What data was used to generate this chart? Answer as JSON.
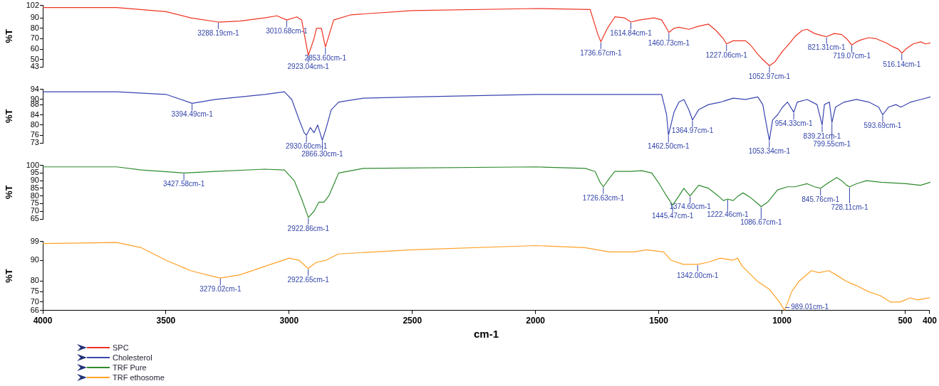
{
  "chart_data": [
    {
      "type": "line",
      "ylabel": "%T",
      "xlim": [
        4000,
        400
      ],
      "ylim": [
        43,
        102
      ],
      "yticks": [
        43,
        50,
        60,
        70,
        80,
        90,
        102
      ],
      "tick_labels": "y",
      "legend": "bottom",
      "x": [
        4000,
        3700,
        3500,
        3400,
        3288.19,
        3200,
        3100,
        3050,
        3010.68,
        2970,
        2950,
        2923.04,
        2900,
        2890,
        2870,
        2853.6,
        2820,
        2750,
        2500,
        2000,
        1780,
        1750,
        1736.67,
        1710,
        1680,
        1640,
        1614.84,
        1580,
        1520,
        1490,
        1470,
        1460.73,
        1440,
        1420,
        1380,
        1340,
        1300,
        1270,
        1240,
        1227.06,
        1200,
        1150,
        1130,
        1100,
        1080,
        1052.97,
        1030,
        1000,
        970,
        950,
        920,
        900,
        870,
        840,
        821.31,
        790,
        760,
        740,
        719.07,
        700,
        680,
        650,
        620,
        580,
        550,
        530,
        516.14,
        500,
        470,
        440,
        420,
        400
      ],
      "series": [
        {
          "name": "SPC",
          "color": "#ee3322",
          "values": [
            100,
            100,
            96,
            90,
            86,
            87,
            90,
            92,
            88,
            91,
            88,
            54,
            70,
            80,
            80,
            62,
            88,
            93,
            97,
            99,
            98,
            75,
            67,
            80,
            91,
            90,
            86,
            88,
            90,
            88,
            80,
            76,
            80,
            81,
            79,
            82,
            84,
            78,
            70,
            65,
            68,
            68,
            64,
            55,
            50,
            44,
            48,
            58,
            66,
            72,
            78,
            79,
            75,
            73,
            72,
            75,
            74,
            70,
            64,
            67,
            69,
            71,
            70,
            66,
            62,
            60,
            56,
            60,
            65,
            67,
            65,
            66
          ]
        }
      ],
      "annotations": [
        {
          "text": "3288.19cm-1",
          "x": 3288.19,
          "y": 86
        },
        {
          "text": "3010.68cm-1",
          "x": 3010.68,
          "y": 88
        },
        {
          "text": "2923.04cm-1",
          "x": 2923.04,
          "y": 54
        },
        {
          "text": "2853.60cm-1",
          "x": 2853.6,
          "y": 62
        },
        {
          "text": "1736.67cm-1",
          "x": 1736.67,
          "y": 67
        },
        {
          "text": "1614.84cm-1",
          "x": 1614.84,
          "y": 86
        },
        {
          "text": "1460.73cm-1",
          "x": 1460.73,
          "y": 76
        },
        {
          "text": "1227.06cm-1",
          "x": 1227.06,
          "y": 65
        },
        {
          "text": "1052.97cm-1",
          "x": 1052.97,
          "y": 44
        },
        {
          "text": "821.31cm-1",
          "x": 821.31,
          "y": 72
        },
        {
          "text": "719.07cm-1",
          "x": 719.07,
          "y": 64
        },
        {
          "text": "516.14cm-1",
          "x": 516.14,
          "y": 56
        }
      ]
    },
    {
      "type": "line",
      "ylabel": "%T",
      "xlim": [
        4000,
        400
      ],
      "ylim": [
        73,
        94
      ],
      "yticks": [
        73,
        76,
        80,
        84,
        88,
        90,
        94
      ],
      "tick_labels": "y",
      "legend": "bottom",
      "x": [
        4000,
        3700,
        3500,
        3394.49,
        3300,
        3100,
        3020,
        2990,
        2960,
        2940,
        2930.6,
        2915,
        2900,
        2885,
        2866.3,
        2850,
        2830,
        2800,
        2700,
        2500,
        2000,
        1600,
        1490,
        1470,
        1462.5,
        1440,
        1420,
        1400,
        1380,
        1364.97,
        1340,
        1300,
        1250,
        1200,
        1150,
        1100,
        1080,
        1065,
        1053.34,
        1040,
        1020,
        1000,
        980,
        954.33,
        940,
        900,
        860,
        839.21,
        830,
        810,
        799.55,
        785,
        750,
        700,
        650,
        610,
        593.69,
        570,
        540,
        520,
        480,
        440,
        400
      ],
      "series": [
        {
          "name": "Cholesterol",
          "color": "#3a44b0",
          "values": [
            93,
            93,
            92,
            88.5,
            90,
            92,
            93,
            90,
            82,
            77,
            76,
            79,
            77,
            80,
            74,
            79,
            86,
            89,
            90.5,
            91,
            92,
            92,
            92,
            84,
            76,
            85,
            89,
            90,
            86,
            82,
            86,
            88,
            89,
            90.5,
            90,
            91,
            88,
            80,
            74,
            82,
            84,
            87,
            89,
            85,
            89,
            90,
            88,
            80,
            88,
            89,
            81,
            87,
            89,
            90,
            89,
            87,
            84,
            87,
            88,
            87,
            89,
            90,
            91
          ]
        }
      ],
      "annotations": [
        {
          "text": "3394.49cm-1",
          "x": 3394.49,
          "y": 88.5
        },
        {
          "text": "2930.60cm-1",
          "x": 2930.6,
          "y": 76
        },
        {
          "text": "2866.30cm-1",
          "x": 2866.3,
          "y": 74
        },
        {
          "text": "1462.50cm-1",
          "x": 1462.5,
          "y": 76
        },
        {
          "text": "1364.97cm-1",
          "x": 1364.97,
          "y": 82
        },
        {
          "text": "1053.34cm-1",
          "x": 1053.34,
          "y": 74
        },
        {
          "text": "954.33cm-1",
          "x": 954.33,
          "y": 85
        },
        {
          "text": "839.21cm-1",
          "x": 839.21,
          "y": 80
        },
        {
          "text": "799.55cm-1",
          "x": 799.55,
          "y": 81
        },
        {
          "text": "593.69cm-1",
          "x": 593.69,
          "y": 84
        }
      ]
    },
    {
      "type": "line",
      "ylabel": "%T",
      "xlim": [
        4000,
        400
      ],
      "ylim": [
        65,
        100
      ],
      "yticks": [
        65,
        70,
        75,
        80,
        85,
        90,
        95,
        100
      ],
      "tick_labels": "y",
      "legend": "bottom",
      "x": [
        4000,
        3700,
        3600,
        3427.58,
        3300,
        3100,
        3020,
        2980,
        2950,
        2922.86,
        2900,
        2880,
        2860,
        2840,
        2800,
        2700,
        2000,
        1800,
        1760,
        1740,
        1726.63,
        1700,
        1680,
        1620,
        1570,
        1530,
        1500,
        1470,
        1445.47,
        1420,
        1400,
        1385,
        1374.6,
        1340,
        1300,
        1260,
        1240,
        1222.46,
        1200,
        1180,
        1160,
        1130,
        1100,
        1086.67,
        1060,
        1020,
        980,
        950,
        900,
        870,
        845.76,
        820,
        780,
        760,
        740,
        728.11,
        700,
        660,
        600,
        500,
        440,
        400
      ],
      "series": [
        {
          "name": "TRF Pure",
          "color": "#2e8b2e",
          "values": [
            99,
            99,
            97,
            95,
            96,
            97.5,
            97,
            90,
            78,
            66,
            70,
            76,
            76,
            80,
            95,
            98,
            99,
            98,
            96,
            89,
            86,
            92,
            96,
            96,
            96.5,
            95,
            88,
            80,
            74,
            80,
            85,
            82,
            80,
            87,
            85,
            80,
            77,
            78,
            77,
            80,
            82,
            79,
            75,
            73,
            76,
            84,
            86,
            86,
            88,
            86,
            85,
            88,
            92,
            90,
            87,
            86,
            88,
            90,
            89,
            88,
            87,
            89
          ]
        }
      ],
      "annotations": [
        {
          "text": "3427.58cm-1",
          "x": 3427.58,
          "y": 95
        },
        {
          "text": "2922.86cm-1",
          "x": 2922.86,
          "y": 66
        },
        {
          "text": "1726.63cm-1",
          "x": 1726.63,
          "y": 86
        },
        {
          "text": "1445.47cm-1",
          "x": 1445.47,
          "y": 74
        },
        {
          "text": "1374.60cm-1",
          "x": 1374.6,
          "y": 80
        },
        {
          "text": "1222.46cm-1",
          "x": 1222.46,
          "y": 78
        },
        {
          "text": "1086.67cm-1",
          "x": 1086.67,
          "y": 73
        },
        {
          "text": "845.76cm-1",
          "x": 845.76,
          "y": 85
        },
        {
          "text": "728.11cm-1",
          "x": 728.11,
          "y": 86
        }
      ]
    },
    {
      "type": "line",
      "ylabel": "%T",
      "xlabel": "cm-1",
      "xlim": [
        4000,
        400
      ],
      "xticks": [
        4000,
        3500,
        3000,
        2500,
        2000,
        1500,
        1000,
        500,
        400
      ],
      "ylim": [
        66,
        99
      ],
      "yticks": [
        66,
        70,
        75,
        80,
        90,
        99
      ],
      "legend": "bottom",
      "x": [
        4000,
        3700,
        3600,
        3500,
        3400,
        3300,
        3279.02,
        3200,
        3100,
        3000,
        2960,
        2922.65,
        2890,
        2850,
        2800,
        2500,
        2000,
        1800,
        1700,
        1600,
        1550,
        1480,
        1450,
        1400,
        1342,
        1300,
        1250,
        1200,
        1180,
        1160,
        1100,
        1050,
        1010,
        989.01,
        960,
        930,
        880,
        850,
        810,
        780,
        740,
        700,
        650,
        600,
        560,
        520,
        480,
        450,
        400
      ],
      "series": [
        {
          "name": "TRF ethosome",
          "color": "#ffa126",
          "values": [
            98,
            98.5,
            96,
            90,
            85,
            82,
            81.5,
            83,
            87,
            91,
            90,
            86,
            89,
            90,
            93,
            95,
            97,
            96,
            94,
            94,
            95,
            94,
            90,
            88,
            88,
            89,
            91,
            90,
            91,
            87,
            80,
            76,
            70,
            66,
            75,
            80,
            85,
            84,
            85,
            83,
            80,
            78,
            75,
            73,
            70,
            70,
            72,
            71,
            72
          ]
        }
      ],
      "annotations": [
        {
          "text": "3279.02cm-1",
          "x": 3279.02,
          "y": 81.5
        },
        {
          "text": "2922.65cm-1",
          "x": 2922.65,
          "y": 86
        },
        {
          "text": "1342.00cm-1",
          "x": 1342,
          "y": 88
        },
        {
          "text": "989.01cm-1",
          "x": 989.01,
          "y": 66
        }
      ]
    }
  ]
}
